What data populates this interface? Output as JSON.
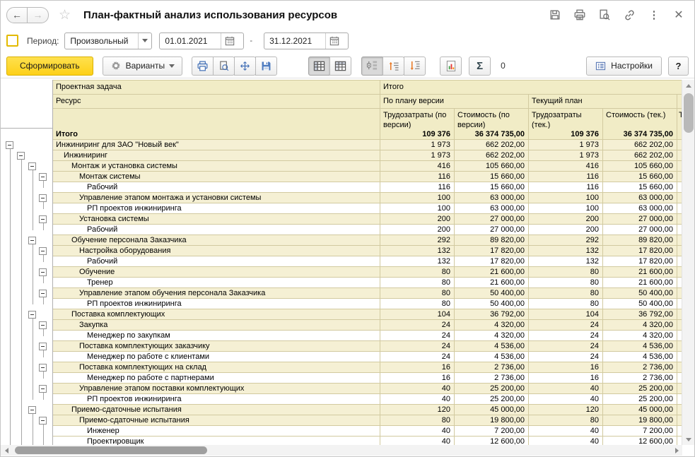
{
  "window": {
    "title": "План-фактный анализ использования ресурсов"
  },
  "period": {
    "label": "Период:",
    "preset": "Произвольный",
    "from": "01.01.2021",
    "dash": "-",
    "to": "31.12.2021"
  },
  "toolbar": {
    "generate": "Сформировать",
    "variants": "Варианты",
    "sigma": "Σ",
    "sum_value": "0",
    "settings": "Настройки",
    "help": "?"
  },
  "colors": {
    "accent_yellow": "#fdd018",
    "header_yellow": "#f1ecc6",
    "group_yellow": "#f5f0d4",
    "grid_border": "#d2caa0",
    "checkbox_border": "#e3ba00"
  },
  "icons": [
    "back-icon",
    "forward-icon",
    "star-icon",
    "save-icon",
    "print-icon",
    "preview-icon",
    "link-icon",
    "kebab-icon",
    "close-icon",
    "calendar-icon",
    "gear-icon",
    "printer-icon",
    "print-preview-icon",
    "fit-icon",
    "save-report-icon",
    "grid-view-icon",
    "grid-header-view-icon",
    "tree-levels-icon",
    "collapse-levels-icon",
    "expand-levels-icon",
    "chart-icon",
    "sigma-icon",
    "settings-form-icon"
  ],
  "table": {
    "header": {
      "task": "Проектная задача",
      "resource": "Ресурс",
      "total": "Итого",
      "plan_version": "По плану версии",
      "current_plan": "Текущий план",
      "col_labor_version": "Трудозатраты (по версии)",
      "col_cost_version": "Стоимость (по версии)",
      "col_labor_current": "Трудозатраты (тек.)",
      "col_cost_current": "Стоимость (тек.)",
      "sliver": "Т"
    },
    "rows": [
      {
        "label": "Итого",
        "level": 0,
        "kind": "total",
        "box": 0,
        "lines": [],
        "ends": [],
        "values": [
          "109 376",
          "36 374 735,00",
          "109 376",
          "36 374 735,00"
        ]
      },
      {
        "label": "Инжиниринг для ЗАО \"Новый век\"",
        "level": 1,
        "kind": "group",
        "box": 1,
        "lines": [],
        "ends": [],
        "values": [
          "1 973",
          "662 202,00",
          "1 973",
          "662 202,00"
        ]
      },
      {
        "label": "Инжиниринг",
        "level": 2,
        "kind": "group",
        "box": 2,
        "lines": [
          1
        ],
        "ends": [],
        "values": [
          "1 973",
          "662 202,00",
          "1 973",
          "662 202,00"
        ]
      },
      {
        "label": "Монтаж и установка системы",
        "level": 3,
        "kind": "group",
        "box": 3,
        "lines": [
          1,
          2
        ],
        "ends": [],
        "values": [
          "416",
          "105 660,00",
          "416",
          "105 660,00"
        ]
      },
      {
        "label": "Монтаж системы",
        "level": 4,
        "kind": "group",
        "box": 4,
        "lines": [
          1,
          2,
          3
        ],
        "ends": [],
        "values": [
          "116",
          "15 660,00",
          "116",
          "15 660,00"
        ]
      },
      {
        "label": "Рабочий",
        "level": 5,
        "kind": "leaf",
        "box": 0,
        "lines": [
          1,
          2,
          3
        ],
        "ends": [
          4
        ],
        "values": [
          "116",
          "15 660,00",
          "116",
          "15 660,00"
        ]
      },
      {
        "label": "Управление этапом монтажа и установки системы",
        "level": 4,
        "kind": "group",
        "box": 4,
        "lines": [
          1,
          2,
          3
        ],
        "ends": [],
        "values": [
          "100",
          "63 000,00",
          "100",
          "63 000,00"
        ]
      },
      {
        "label": "РП проектов инжиниринга",
        "level": 5,
        "kind": "leaf",
        "box": 0,
        "lines": [
          1,
          2,
          3
        ],
        "ends": [
          4
        ],
        "values": [
          "100",
          "63 000,00",
          "100",
          "63 000,00"
        ]
      },
      {
        "label": "Установка системы",
        "level": 4,
        "kind": "group",
        "box": 4,
        "lines": [
          1,
          2,
          3
        ],
        "ends": [],
        "values": [
          "200",
          "27 000,00",
          "200",
          "27 000,00"
        ]
      },
      {
        "label": "Рабочий",
        "level": 5,
        "kind": "leaf",
        "box": 0,
        "lines": [
          1,
          2
        ],
        "ends": [
          3,
          4
        ],
        "values": [
          "200",
          "27 000,00",
          "200",
          "27 000,00"
        ]
      },
      {
        "label": "Обучение персонала Заказчика",
        "level": 3,
        "kind": "group",
        "box": 3,
        "lines": [
          1,
          2
        ],
        "ends": [],
        "values": [
          "292",
          "89 820,00",
          "292",
          "89 820,00"
        ]
      },
      {
        "label": "Настройка оборудования",
        "level": 4,
        "kind": "group",
        "box": 4,
        "lines": [
          1,
          2,
          3
        ],
        "ends": [],
        "values": [
          "132",
          "17 820,00",
          "132",
          "17 820,00"
        ]
      },
      {
        "label": "Рабочий",
        "level": 5,
        "kind": "leaf",
        "box": 0,
        "lines": [
          1,
          2,
          3
        ],
        "ends": [
          4
        ],
        "values": [
          "132",
          "17 820,00",
          "132",
          "17 820,00"
        ]
      },
      {
        "label": "Обучение",
        "level": 4,
        "kind": "group",
        "box": 4,
        "lines": [
          1,
          2,
          3
        ],
        "ends": [],
        "values": [
          "80",
          "21 600,00",
          "80",
          "21 600,00"
        ]
      },
      {
        "label": "Тренер",
        "level": 5,
        "kind": "leaf",
        "box": 0,
        "lines": [
          1,
          2,
          3
        ],
        "ends": [
          4
        ],
        "values": [
          "80",
          "21 600,00",
          "80",
          "21 600,00"
        ]
      },
      {
        "label": "Управление этапом обучения персонала Заказчика",
        "level": 4,
        "kind": "group",
        "box": 4,
        "lines": [
          1,
          2,
          3
        ],
        "ends": [],
        "values": [
          "80",
          "50 400,00",
          "80",
          "50 400,00"
        ]
      },
      {
        "label": "РП проектов инжиниринга",
        "level": 5,
        "kind": "leaf",
        "box": 0,
        "lines": [
          1,
          2
        ],
        "ends": [
          3,
          4
        ],
        "values": [
          "80",
          "50 400,00",
          "80",
          "50 400,00"
        ]
      },
      {
        "label": "Поставка комплектующих",
        "level": 3,
        "kind": "group",
        "box": 3,
        "lines": [
          1,
          2
        ],
        "ends": [],
        "values": [
          "104",
          "36 792,00",
          "104",
          "36 792,00"
        ]
      },
      {
        "label": "Закупка",
        "level": 4,
        "kind": "group",
        "box": 4,
        "lines": [
          1,
          2,
          3
        ],
        "ends": [],
        "values": [
          "24",
          "4 320,00",
          "24",
          "4 320,00"
        ]
      },
      {
        "label": "Менеджер по закупкам",
        "level": 5,
        "kind": "leaf",
        "box": 0,
        "lines": [
          1,
          2,
          3
        ],
        "ends": [
          4
        ],
        "values": [
          "24",
          "4 320,00",
          "24",
          "4 320,00"
        ]
      },
      {
        "label": "Поставка комплектующих заказчику",
        "level": 4,
        "kind": "group",
        "box": 4,
        "lines": [
          1,
          2,
          3
        ],
        "ends": [],
        "values": [
          "24",
          "4 536,00",
          "24",
          "4 536,00"
        ]
      },
      {
        "label": "Менеджер по работе с клиентами",
        "level": 5,
        "kind": "leaf",
        "box": 0,
        "lines": [
          1,
          2,
          3
        ],
        "ends": [
          4
        ],
        "values": [
          "24",
          "4 536,00",
          "24",
          "4 536,00"
        ]
      },
      {
        "label": "Поставка комплектующих на склад",
        "level": 4,
        "kind": "group",
        "box": 4,
        "lines": [
          1,
          2,
          3
        ],
        "ends": [],
        "values": [
          "16",
          "2 736,00",
          "16",
          "2 736,00"
        ]
      },
      {
        "label": "Менеджер по работе с партнерами",
        "level": 5,
        "kind": "leaf",
        "box": 0,
        "lines": [
          1,
          2,
          3
        ],
        "ends": [
          4
        ],
        "values": [
          "16",
          "2 736,00",
          "16",
          "2 736,00"
        ]
      },
      {
        "label": "Управление этапом поставки комплектующих",
        "level": 4,
        "kind": "group",
        "box": 4,
        "lines": [
          1,
          2,
          3
        ],
        "ends": [],
        "values": [
          "40",
          "25 200,00",
          "40",
          "25 200,00"
        ]
      },
      {
        "label": "РП проектов инжиниринга",
        "level": 5,
        "kind": "leaf",
        "box": 0,
        "lines": [
          1,
          2
        ],
        "ends": [
          3,
          4
        ],
        "values": [
          "40",
          "25 200,00",
          "40",
          "25 200,00"
        ]
      },
      {
        "label": "Приемо-сдаточные испытания",
        "level": 3,
        "kind": "group",
        "box": 3,
        "lines": [
          1,
          2
        ],
        "ends": [],
        "values": [
          "120",
          "45 000,00",
          "120",
          "45 000,00"
        ]
      },
      {
        "label": "Приемо-сдаточные испытания",
        "level": 4,
        "kind": "group",
        "box": 4,
        "lines": [
          1,
          2,
          3
        ],
        "ends": [],
        "values": [
          "80",
          "19 800,00",
          "80",
          "19 800,00"
        ]
      },
      {
        "label": "Инженер",
        "level": 5,
        "kind": "leaf",
        "box": 0,
        "lines": [
          1,
          2,
          3,
          4
        ],
        "ends": [],
        "values": [
          "40",
          "7 200,00",
          "40",
          "7 200,00"
        ]
      },
      {
        "label": "Проектировщик",
        "level": 5,
        "kind": "leaf",
        "box": 0,
        "lines": [
          1,
          2,
          3,
          4
        ],
        "ends": [],
        "values": [
          "40",
          "12 600,00",
          "40",
          "12 600,00"
        ]
      }
    ]
  }
}
